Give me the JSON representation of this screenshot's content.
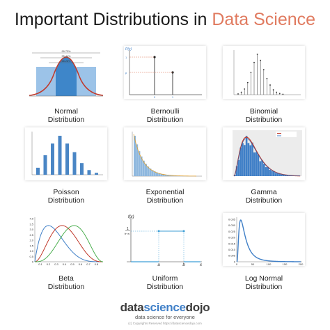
{
  "title": {
    "main": "Important Distributions in ",
    "accent": "Data Science"
  },
  "tiles": [
    {
      "line1": "Normal",
      "line2": "Distribution"
    },
    {
      "line1": "Bernoulli",
      "line2": "Distribution"
    },
    {
      "line1": "Binomial",
      "line2": "Distribution"
    },
    {
      "line1": "Poisson",
      "line2": "Distribution"
    },
    {
      "line1": "Exponential",
      "line2": "Distribution"
    },
    {
      "line1": "Gamma",
      "line2": "Distribution"
    },
    {
      "line1": "Beta",
      "line2": "Distribution"
    },
    {
      "line1": "Uniform",
      "line2": "Distribution"
    },
    {
      "line1": "Log Normal",
      "line2": "Distribution"
    }
  ],
  "normal_chart": {
    "pct_labels": [
      "99.73%",
      "95.44%",
      "68.26%"
    ]
  },
  "bernoulli_chart": {
    "ylabel": "P(x)",
    "y_ticks": [
      "1",
      "p"
    ],
    "x_ticks": [
      "0",
      "1"
    ]
  },
  "beta_chart": {
    "y_ticks": [
      "4.0",
      "3.5",
      "3.0",
      "2.5",
      "2.0",
      "1.5",
      "1.0",
      "0.5",
      "0"
    ],
    "x_ticks": [
      "0.1",
      "0.2",
      "0.3",
      "0.4",
      "0.5",
      "0.6",
      "0.7",
      "0.8"
    ]
  },
  "uniform_chart": {
    "fx": "f(x)",
    "num": "1",
    "den": "b−a",
    "a": "a",
    "b": "b",
    "x": "x"
  },
  "lognormal_chart": {
    "y_ticks": [
      "0.035",
      "0.030",
      "0.025",
      "0.020",
      "0.015",
      "0.010",
      "0.005",
      "0"
    ],
    "x_ticks": [
      "0",
      "50",
      "100",
      "150",
      "200"
    ]
  },
  "brand": {
    "logo_a": "data",
    "logo_b": "science",
    "logo_c": "dojo",
    "tagline": "data science for everyone"
  },
  "copyright": "(c) Copyrights Reserved  https://datasciencedojo.com",
  "colors": {
    "accent": "#e07a5f",
    "bar_blue": "#4a86c5",
    "red": "#c0392b"
  }
}
